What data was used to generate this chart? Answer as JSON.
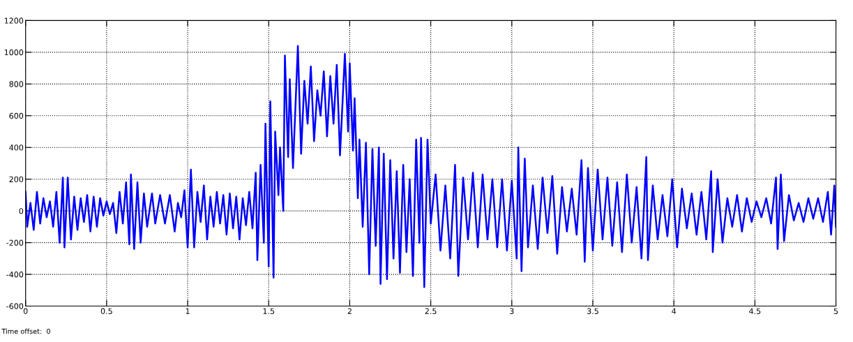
{
  "chart_data": {
    "type": "line",
    "x": [
      0,
      0.01,
      0.03,
      0.05,
      0.07,
      0.09,
      0.11,
      0.13,
      0.15,
      0.17,
      0.19,
      0.21,
      0.23,
      0.24,
      0.26,
      0.28,
      0.3,
      0.32,
      0.34,
      0.36,
      0.38,
      0.4,
      0.42,
      0.44,
      0.46,
      0.48,
      0.5,
      0.52,
      0.54,
      0.56,
      0.58,
      0.6,
      0.62,
      0.64,
      0.65,
      0.67,
      0.69,
      0.71,
      0.73,
      0.75,
      0.78,
      0.8,
      0.83,
      0.86,
      0.89,
      0.92,
      0.94,
      0.96,
      0.98,
      1.0,
      1.02,
      1.04,
      1.06,
      1.08,
      1.1,
      1.12,
      1.14,
      1.16,
      1.18,
      1.2,
      1.22,
      1.24,
      1.26,
      1.28,
      1.3,
      1.32,
      1.34,
      1.36,
      1.38,
      1.4,
      1.42,
      1.43,
      1.45,
      1.47,
      1.48,
      1.5,
      1.51,
      1.53,
      1.54,
      1.56,
      1.57,
      1.59,
      1.6,
      1.62,
      1.63,
      1.65,
      1.68,
      1.7,
      1.72,
      1.74,
      1.76,
      1.78,
      1.8,
      1.82,
      1.84,
      1.86,
      1.88,
      1.9,
      1.92,
      1.94,
      1.97,
      1.99,
      2.0,
      2.02,
      2.03,
      2.05,
      2.06,
      2.08,
      2.1,
      2.12,
      2.14,
      2.16,
      2.18,
      2.19,
      2.21,
      2.23,
      2.25,
      2.27,
      2.29,
      2.31,
      2.33,
      2.35,
      2.37,
      2.39,
      2.41,
      2.43,
      2.44,
      2.46,
      2.48,
      2.5,
      2.53,
      2.56,
      2.59,
      2.62,
      2.65,
      2.67,
      2.7,
      2.73,
      2.76,
      2.79,
      2.82,
      2.85,
      2.88,
      2.91,
      2.94,
      2.97,
      3.0,
      3.03,
      3.04,
      3.06,
      3.08,
      3.1,
      3.13,
      3.16,
      3.19,
      3.22,
      3.25,
      3.28,
      3.31,
      3.34,
      3.37,
      3.4,
      3.43,
      3.45,
      3.47,
      3.5,
      3.53,
      3.56,
      3.59,
      3.62,
      3.65,
      3.68,
      3.71,
      3.74,
      3.77,
      3.8,
      3.83,
      3.84,
      3.87,
      3.9,
      3.93,
      3.96,
      3.99,
      4.02,
      4.05,
      4.08,
      4.11,
      4.14,
      4.17,
      4.2,
      4.23,
      4.24,
      4.27,
      4.3,
      4.33,
      4.36,
      4.39,
      4.42,
      4.45,
      4.48,
      4.51,
      4.54,
      4.57,
      4.6,
      4.63,
      4.64,
      4.66,
      4.68,
      4.71,
      4.74,
      4.77,
      4.8,
      4.83,
      4.86,
      4.89,
      4.92,
      4.95,
      4.97,
      4.99,
      5.0
    ],
    "series": [
      {
        "color": "#0000ff",
        "values": [
          120,
          -100,
          50,
          -120,
          120,
          -80,
          80,
          -40,
          60,
          -100,
          120,
          -200,
          210,
          -230,
          210,
          -180,
          90,
          -120,
          80,
          -70,
          100,
          -130,
          90,
          -100,
          80,
          -30,
          60,
          -20,
          50,
          -140,
          120,
          -80,
          180,
          -210,
          230,
          -240,
          180,
          -200,
          110,
          -100,
          110,
          -80,
          100,
          -80,
          100,
          -130,
          50,
          -40,
          130,
          -230,
          260,
          -230,
          120,
          -70,
          160,
          -180,
          90,
          -100,
          120,
          -80,
          100,
          -150,
          110,
          -110,
          90,
          -180,
          80,
          -90,
          120,
          -110,
          240,
          -310,
          290,
          -200,
          550,
          -350,
          690,
          -420,
          500,
          100,
          400,
          0,
          980,
          340,
          830,
          270,
          1040,
          360,
          820,
          550,
          910,
          440,
          760,
          600,
          880,
          470,
          850,
          550,
          920,
          350,
          990,
          500,
          930,
          380,
          710,
          80,
          450,
          -100,
          430,
          -400,
          390,
          -220,
          400,
          -460,
          360,
          -430,
          320,
          -300,
          250,
          -390,
          290,
          -260,
          200,
          -410,
          450,
          -200,
          460,
          -480,
          450,
          -80,
          230,
          -250,
          160,
          -300,
          290,
          -410,
          210,
          -180,
          240,
          -230,
          230,
          -180,
          200,
          -230,
          200,
          -250,
          190,
          -300,
          400,
          -380,
          330,
          -230,
          160,
          -240,
          210,
          -140,
          220,
          -270,
          150,
          -130,
          140,
          -150,
          320,
          -320,
          270,
          -250,
          260,
          -180,
          210,
          -220,
          180,
          -260,
          230,
          -200,
          150,
          -300,
          340,
          -310,
          160,
          -180,
          100,
          -160,
          200,
          -230,
          140,
          -110,
          110,
          -150,
          120,
          -180,
          250,
          -260,
          200,
          -200,
          80,
          -100,
          100,
          -130,
          80,
          -70,
          60,
          -40,
          80,
          -80,
          210,
          -240,
          230,
          -190,
          100,
          -60,
          50,
          -70,
          80,
          -50,
          80,
          -70,
          120,
          -150,
          160,
          -100
        ]
      }
    ],
    "xlim": [
      0,
      5
    ],
    "xticks": [
      0,
      0.5,
      1,
      1.5,
      2,
      2.5,
      3,
      3.5,
      4,
      4.5,
      5
    ],
    "ylim": [
      -600,
      1200
    ],
    "yticks": [
      -600,
      -400,
      -200,
      0,
      200,
      400,
      600,
      800,
      1000,
      1200
    ],
    "grid": true,
    "line_style": "solid",
    "annotations": [
      "Time offset:  0"
    ]
  }
}
